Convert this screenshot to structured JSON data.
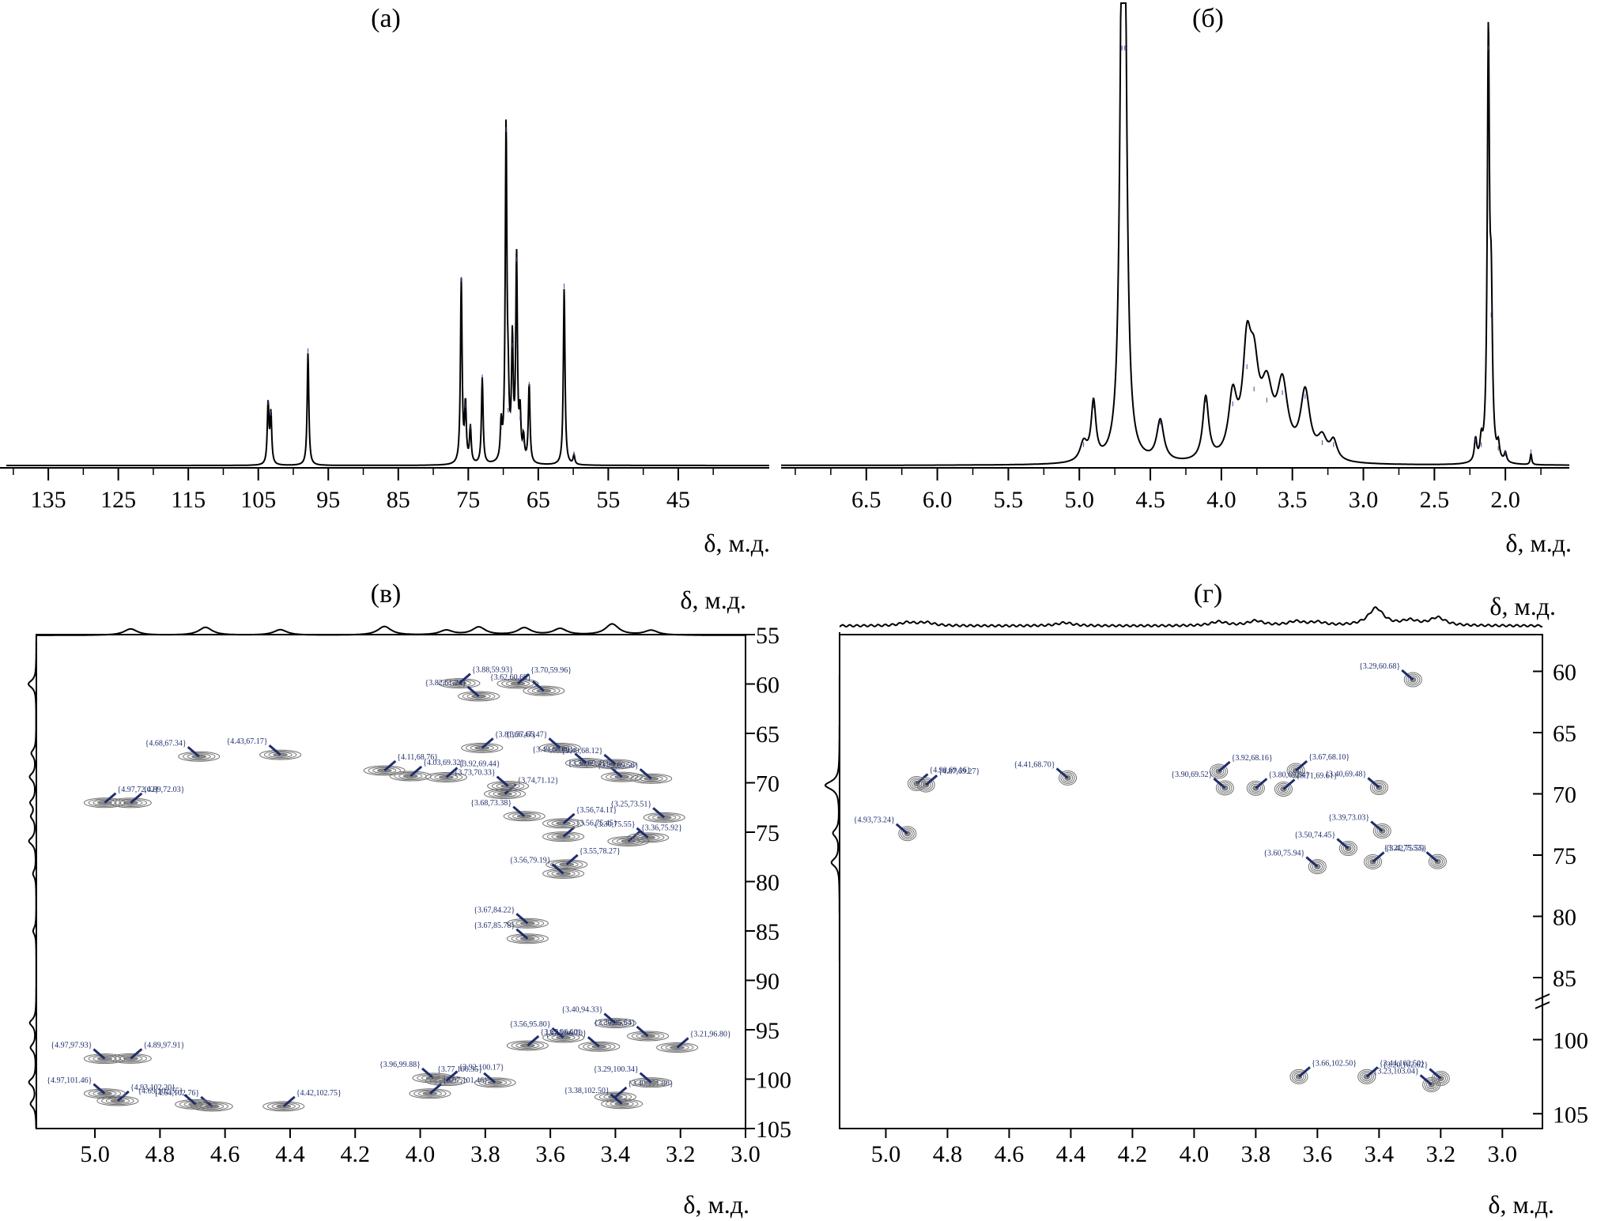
{
  "chart_data": [
    {
      "panel": "(а)",
      "type": "line",
      "xlabel": "δ, м.д.",
      "x_reversed": true,
      "xlim": [
        32,
        141
      ],
      "xticks": [
        135,
        125,
        115,
        105,
        95,
        85,
        75,
        65,
        55,
        45
      ],
      "peaks": [
        {
          "x": 103.6,
          "h": 0.163
        },
        {
          "x": 103.2,
          "h": 0.134
        },
        {
          "x": 97.9,
          "h": 0.302
        },
        {
          "x": 76.0,
          "h": 0.494
        },
        {
          "x": 75.4,
          "h": 0.154
        },
        {
          "x": 74.7,
          "h": 0.097
        },
        {
          "x": 73.0,
          "h": 0.232
        },
        {
          "x": 70.3,
          "h": 0.096
        },
        {
          "x": 69.6,
          "h": 0.896
        },
        {
          "x": 69.3,
          "h": 0.142
        },
        {
          "x": 68.7,
          "h": 0.317
        },
        {
          "x": 68.1,
          "h": 0.547
        },
        {
          "x": 67.6,
          "h": 0.122
        },
        {
          "x": 67.1,
          "h": 0.061
        },
        {
          "x": 66.3,
          "h": 0.212
        },
        {
          "x": 61.3,
          "h": 0.476
        },
        {
          "x": 59.9,
          "h": 0.025
        }
      ]
    },
    {
      "panel": "(б)",
      "type": "line",
      "xlabel": "δ, м.д.",
      "x_reversed": true,
      "xlim": [
        1.55,
        7.1
      ],
      "xticks": [
        6.5,
        6.0,
        5.5,
        5.0,
        4.5,
        4.0,
        3.5,
        3.0,
        2.5,
        2.0
      ],
      "peaks": [
        {
          "x": 4.7,
          "h": 1.12,
          "w": 0.018
        },
        {
          "x": 4.68,
          "h": 1.12,
          "w": 0.018
        },
        {
          "x": 4.9,
          "h": 0.155,
          "w": 0.02
        },
        {
          "x": 4.97,
          "h": 0.05,
          "w": 0.03
        },
        {
          "x": 4.43,
          "h": 0.11,
          "w": 0.03
        },
        {
          "x": 4.11,
          "h": 0.17,
          "w": 0.025
        },
        {
          "x": 3.92,
          "h": 0.16,
          "w": 0.035
        },
        {
          "x": 3.82,
          "h": 0.26,
          "w": 0.035
        },
        {
          "x": 3.77,
          "h": 0.2,
          "w": 0.04
        },
        {
          "x": 3.68,
          "h": 0.17,
          "w": 0.05
        },
        {
          "x": 3.57,
          "h": 0.19,
          "w": 0.045
        },
        {
          "x": 3.41,
          "h": 0.18,
          "w": 0.04
        },
        {
          "x": 3.29,
          "h": 0.055,
          "w": 0.04
        },
        {
          "x": 3.21,
          "h": 0.05,
          "w": 0.03
        },
        {
          "x": 2.12,
          "h": 1.12,
          "w": 0.009
        },
        {
          "x": 2.1,
          "h": 0.4,
          "w": 0.01
        },
        {
          "x": 2.21,
          "h": 0.06,
          "w": 0.01
        },
        {
          "x": 2.17,
          "h": 0.05,
          "w": 0.01
        },
        {
          "x": 2.05,
          "h": 0.04,
          "w": 0.01
        },
        {
          "x": 2.0,
          "h": 0.025,
          "w": 0.01
        },
        {
          "x": 1.82,
          "h": 0.03,
          "w": 0.006
        }
      ]
    },
    {
      "panel": "(в)",
      "type": "scatter",
      "subtype": "2D HSQC contour",
      "xlabel": "δ, м.д.",
      "ylabel": "δ, м.д.",
      "x_reversed": true,
      "xlim": [
        3.0,
        5.18
      ],
      "ylim": [
        55,
        105
      ],
      "xticks": [
        5.0,
        4.8,
        4.6,
        4.4,
        4.2,
        4.0,
        3.8,
        3.6,
        3.4,
        3.2,
        3.0
      ],
      "yticks": [
        55,
        60,
        65,
        70,
        75,
        80,
        85,
        90,
        95,
        100,
        105
      ],
      "points": [
        {
          "label": "{3.70,59.96}",
          "x": 3.7,
          "y": 59.96
        },
        {
          "label": "{3.62,60.69}",
          "x": 3.62,
          "y": 60.69
        },
        {
          "label": "{3.88,59.93}",
          "x": 3.88,
          "y": 59.93
        },
        {
          "label": "{3.82,61.24}",
          "x": 3.82,
          "y": 61.24
        },
        {
          "label": "{4.68,67.34}",
          "x": 4.68,
          "y": 67.34
        },
        {
          "label": "{4.43,67.17}",
          "x": 4.43,
          "y": 67.17
        },
        {
          "label": "{3.81,66.47}",
          "x": 3.81,
          "y": 66.47
        },
        {
          "label": "{3.57,66.47}",
          "x": 3.57,
          "y": 66.47
        },
        {
          "label": "{3.49,68.00}",
          "x": 3.49,
          "y": 68.0
        },
        {
          "label": "{3.38,69.41}",
          "x": 3.38,
          "y": 69.41
        },
        {
          "label": "{4.11,68.76}",
          "x": 4.11,
          "y": 68.76
        },
        {
          "label": "{4.03,69.32}",
          "x": 4.03,
          "y": 69.32
        },
        {
          "label": "{3.40,68.12}",
          "x": 3.4,
          "y": 68.12
        },
        {
          "label": "{3.29,69.58}",
          "x": 3.29,
          "y": 69.58
        },
        {
          "label": "{3.74,71.12}",
          "x": 3.74,
          "y": 71.12
        },
        {
          "label": "{3.92,69.44}",
          "x": 3.92,
          "y": 69.44
        },
        {
          "label": "{3.73,70.33}",
          "x": 3.73,
          "y": 70.33
        },
        {
          "label": "{4.89,72.03}",
          "x": 4.89,
          "y": 72.03
        },
        {
          "label": "{4.97,72.02}",
          "x": 4.97,
          "y": 72.02
        },
        {
          "label": "{3.68,73.38}",
          "x": 3.68,
          "y": 73.38
        },
        {
          "label": "{3.25,73.51}",
          "x": 3.25,
          "y": 73.51
        },
        {
          "label": "{3.56,75.45}",
          "x": 3.56,
          "y": 75.45
        },
        {
          "label": "{3.36,75.92}",
          "x": 3.36,
          "y": 75.92
        },
        {
          "label": "{3.56,74.11}",
          "x": 3.56,
          "y": 74.11
        },
        {
          "label": "{3.55,78.27}",
          "x": 3.55,
          "y": 78.27
        },
        {
          "label": "{3.30,75.55}",
          "x": 3.3,
          "y": 75.55
        },
        {
          "label": "{3.56,79.19}",
          "x": 3.56,
          "y": 79.19
        },
        {
          "label": "{3.67,84.22}",
          "x": 3.67,
          "y": 84.22
        },
        {
          "label": "{3.67,85.78}",
          "x": 3.67,
          "y": 85.78
        },
        {
          "label": "{3.40,94.33}",
          "x": 3.4,
          "y": 94.33
        },
        {
          "label": "{3.56,95.80}",
          "x": 3.56,
          "y": 95.8
        },
        {
          "label": "{3.30,95.64}",
          "x": 3.3,
          "y": 95.64
        },
        {
          "label": "{3.21,96.80}",
          "x": 3.21,
          "y": 96.8
        },
        {
          "label": "{4.89,97.91}",
          "x": 4.89,
          "y": 97.91
        },
        {
          "label": "{3.67,96.60}",
          "x": 3.67,
          "y": 96.6
        },
        {
          "label": "{3.45,96.70}",
          "x": 3.45,
          "y": 96.7
        },
        {
          "label": "{4.97,97.93}",
          "x": 4.97,
          "y": 97.93
        },
        {
          "label": "{3.96,99.88}",
          "x": 3.96,
          "y": 99.88
        },
        {
          "label": "{3.92,100.17}",
          "x": 3.92,
          "y": 100.17
        },
        {
          "label": "{4.93,102.20}",
          "x": 4.93,
          "y": 102.2
        },
        {
          "label": "{4.64,102.76}",
          "x": 4.64,
          "y": 102.76
        },
        {
          "label": "{4.69,102.55}",
          "x": 4.69,
          "y": 102.55
        },
        {
          "label": "{4.42,102.75}",
          "x": 4.42,
          "y": 102.75
        },
        {
          "label": "{3.40,101.80}",
          "x": 3.4,
          "y": 101.8
        },
        {
          "label": "{3.29,100.34}",
          "x": 3.29,
          "y": 100.34
        },
        {
          "label": "{3.97,101.46}",
          "x": 3.97,
          "y": 101.46
        },
        {
          "label": "{3.77,100.35}",
          "x": 3.77,
          "y": 100.35
        },
        {
          "label": "{3.38,102.50}",
          "x": 3.38,
          "y": 102.5
        },
        {
          "label": "{4.97,101.46}",
          "x": 4.97,
          "y": 101.46
        }
      ]
    },
    {
      "panel": "(г)",
      "type": "scatter",
      "subtype": "2D HSQC contour",
      "xlabel": "δ, м.д.",
      "ylabel": "δ, м.д.",
      "x_reversed": true,
      "xlim": [
        2.87,
        5.15
      ],
      "y_axis_break": [
        87,
        98
      ],
      "ylim_upper": [
        57,
        87
      ],
      "ylim_lower": [
        98,
        106
      ],
      "xticks": [
        5.0,
        4.8,
        4.6,
        4.4,
        4.2,
        4.0,
        3.8,
        3.6,
        3.4,
        3.2,
        3.0
      ],
      "yticks_upper": [
        60,
        65,
        70,
        75,
        80,
        85
      ],
      "yticks_lower": [
        100,
        105
      ],
      "points": [
        {
          "label": "{3.29,60.68}",
          "x": 3.29,
          "y": 60.68
        },
        {
          "label": "{4.90,69.16}",
          "x": 4.9,
          "y": 69.16
        },
        {
          "label": "{4.87,69.27}",
          "x": 4.87,
          "y": 69.27
        },
        {
          "label": "{4.41,68.70}",
          "x": 4.41,
          "y": 68.7
        },
        {
          "label": "{3.92,68.16}",
          "x": 3.92,
          "y": 68.16
        },
        {
          "label": "{3.67,68.10}",
          "x": 3.67,
          "y": 68.1
        },
        {
          "label": "{3.40,69.48}",
          "x": 3.4,
          "y": 69.48
        },
        {
          "label": "{3.90,69.52}",
          "x": 3.9,
          "y": 69.52
        },
        {
          "label": "{3.71,69.61}",
          "x": 3.71,
          "y": 69.61
        },
        {
          "label": "{3.80,69.54}",
          "x": 3.8,
          "y": 69.54
        },
        {
          "label": "{4.93,73.24}",
          "x": 4.93,
          "y": 73.24
        },
        {
          "label": "{3.39,73.03}",
          "x": 3.39,
          "y": 73.03
        },
        {
          "label": "{3.50,74.45}",
          "x": 3.5,
          "y": 74.45
        },
        {
          "label": "{3.21,75.53}",
          "x": 3.21,
          "y": 75.53
        },
        {
          "label": "{3.60,75.94}",
          "x": 3.6,
          "y": 75.94
        },
        {
          "label": "{3.42,75.55}",
          "x": 3.42,
          "y": 75.55
        },
        {
          "label": "{3.66,102.50}",
          "x": 3.66,
          "y": 102.5
        },
        {
          "label": "{3.44,102.50}",
          "x": 3.44,
          "y": 102.5
        },
        {
          "label": "{3.20,102.62}",
          "x": 3.2,
          "y": 102.62
        },
        {
          "label": "{3.23,103.04}",
          "x": 3.23,
          "y": 103.04
        }
      ]
    }
  ]
}
